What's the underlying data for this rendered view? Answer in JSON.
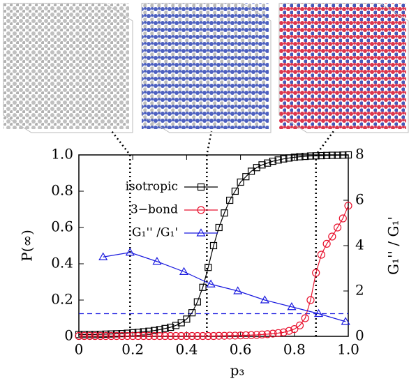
{
  "chart_data": {
    "type": "line",
    "x_label": "p₃",
    "y_label": "P(∞)",
    "y2_label": "G₁'' / G₁'",
    "xlim": [
      0,
      1
    ],
    "xticks": [
      0,
      0.2,
      0.4,
      0.6,
      0.8,
      {
        "value": 1,
        "label": "1.0"
      }
    ],
    "ylim": [
      0,
      1
    ],
    "yticks": [
      0,
      0.2,
      0.4,
      0.6,
      0.8,
      {
        "value": 1,
        "label": "1.0"
      }
    ],
    "y2lim": [
      0,
      8
    ],
    "y2ticks": [
      0,
      2,
      4,
      6,
      8
    ],
    "markers_x": [
      0.19,
      0.475,
      0.88
    ],
    "reference_y2": 1,
    "series": [
      {
        "name": "isotropic",
        "color": "#000000",
        "marker": "square",
        "x": [
          0,
          0.02,
          0.04,
          0.06,
          0.08,
          0.1,
          0.12,
          0.14,
          0.16,
          0.18,
          0.2,
          0.22,
          0.24,
          0.26,
          0.28,
          0.3,
          0.32,
          0.34,
          0.36,
          0.38,
          0.4,
          0.42,
          0.44,
          0.46,
          0.48,
          0.5,
          0.52,
          0.54,
          0.56,
          0.58,
          0.6,
          0.62,
          0.64,
          0.66,
          0.68,
          0.7,
          0.72,
          0.74,
          0.76,
          0.78,
          0.8,
          0.82,
          0.84,
          0.86,
          0.88,
          0.9,
          0.92,
          0.94,
          0.96,
          0.98,
          1
        ],
        "values": [
          0.01,
          0.01,
          0.01,
          0.01,
          0.011,
          0.012,
          0.013,
          0.014,
          0.015,
          0.017,
          0.02,
          0.022,
          0.025,
          0.028,
          0.032,
          0.037,
          0.043,
          0.05,
          0.06,
          0.075,
          0.095,
          0.13,
          0.19,
          0.27,
          0.38,
          0.5,
          0.6,
          0.68,
          0.75,
          0.8,
          0.85,
          0.88,
          0.91,
          0.93,
          0.945,
          0.955,
          0.965,
          0.972,
          0.978,
          0.983,
          0.987,
          0.99,
          0.992,
          0.994,
          0.995,
          0.996,
          0.997,
          0.998,
          0.998,
          0.999,
          1
        ]
      },
      {
        "name": "3−bond",
        "color": "#e8112d",
        "marker": "circle",
        "x": [
          0,
          0.02,
          0.04,
          0.06,
          0.08,
          0.1,
          0.12,
          0.14,
          0.16,
          0.18,
          0.2,
          0.22,
          0.24,
          0.26,
          0.28,
          0.3,
          0.32,
          0.34,
          0.36,
          0.38,
          0.4,
          0.42,
          0.44,
          0.46,
          0.48,
          0.5,
          0.52,
          0.54,
          0.56,
          0.58,
          0.6,
          0.62,
          0.64,
          0.66,
          0.68,
          0.7,
          0.72,
          0.74,
          0.76,
          0.78,
          0.8,
          0.82,
          0.84,
          0.86,
          0.88,
          0.9,
          0.92,
          0.94,
          0.96,
          0.98,
          1
        ],
        "values": [
          0.002,
          0.002,
          0.002,
          0.002,
          0.002,
          0.002,
          0.002,
          0.002,
          0.002,
          0.002,
          0.002,
          0.002,
          0.002,
          0.002,
          0.002,
          0.002,
          0.002,
          0.002,
          0.002,
          0.002,
          0.002,
          0.002,
          0.002,
          0.002,
          0.002,
          0.002,
          0.003,
          0.003,
          0.004,
          0.004,
          0.005,
          0.006,
          0.007,
          0.008,
          0.01,
          0.012,
          0.015,
          0.018,
          0.022,
          0.03,
          0.04,
          0.06,
          0.1,
          0.2,
          0.35,
          0.45,
          0.51,
          0.55,
          0.6,
          0.65,
          0.72
        ]
      },
      {
        "name": "G₁'' /G₁'",
        "color": "#1a1adf",
        "marker": "triangle",
        "axis": "y2",
        "x": [
          0.09,
          0.19,
          0.29,
          0.39,
          0.49,
          0.59,
          0.69,
          0.79,
          0.89,
          0.99
        ],
        "values": [
          3.5,
          3.7,
          3.3,
          2.85,
          2.3,
          2.0,
          1.6,
          1.3,
          1.0,
          0.65
        ]
      }
    ]
  }
}
